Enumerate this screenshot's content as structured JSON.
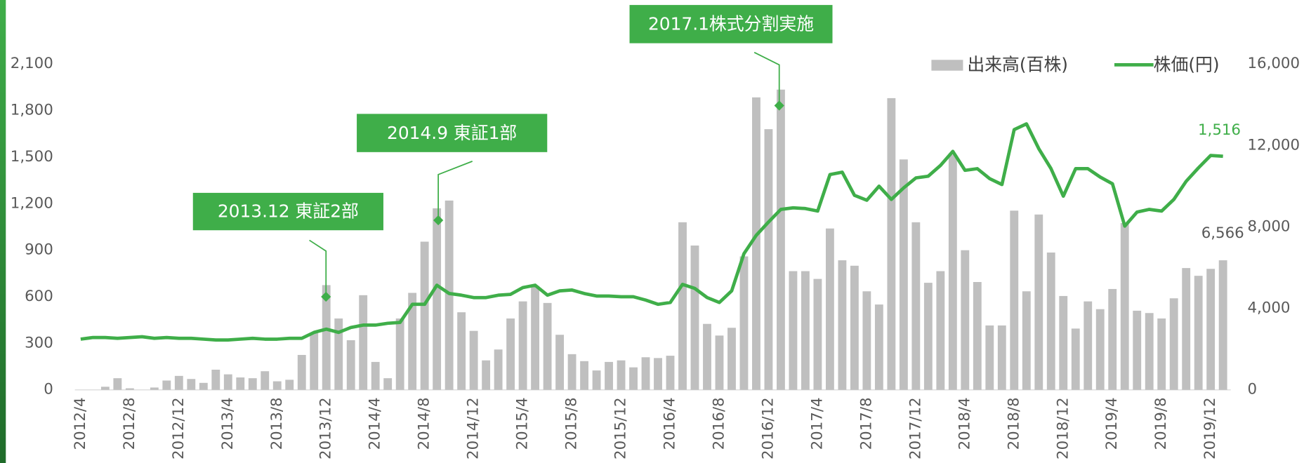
{
  "chart_data": {
    "type": "bar-line",
    "categories": [
      "2012/4",
      null,
      null,
      null,
      "2012/8",
      null,
      null,
      null,
      "2012/12",
      null,
      null,
      null,
      "2013/4",
      null,
      null,
      null,
      "2013/8",
      null,
      null,
      null,
      "2013/12",
      null,
      null,
      null,
      "2014/4",
      null,
      null,
      null,
      "2014/8",
      null,
      null,
      null,
      "2014/12",
      null,
      null,
      null,
      "2015/4",
      null,
      null,
      null,
      "2015/8",
      null,
      null,
      null,
      "2015/12",
      null,
      null,
      null,
      "2016/4",
      null,
      null,
      null,
      "2016/8",
      null,
      null,
      null,
      "2016/12",
      null,
      null,
      null,
      "2017/4",
      null,
      null,
      null,
      "2017/8",
      null,
      null,
      null,
      "2017/12",
      null,
      null,
      null,
      "2018/4",
      null,
      null,
      null,
      "2018/8",
      null,
      null,
      null,
      "2018/12",
      null,
      null,
      null,
      "2019/4",
      null,
      null,
      null,
      "2019/8",
      null,
      null,
      null,
      "2019/12",
      null
    ],
    "series": [
      {
        "name": "出来高(百株)",
        "type": "bar",
        "color": "#bfbfbf",
        "values": [
          0,
          0,
          20,
          75,
          10,
          0,
          15,
          60,
          90,
          70,
          45,
          130,
          100,
          80,
          75,
          120,
          55,
          65,
          225,
          365,
          675,
          460,
          320,
          610,
          180,
          75,
          460,
          625,
          955,
          1170,
          1220,
          500,
          380,
          190,
          260,
          460,
          570,
          670,
          560,
          355,
          230,
          185,
          125,
          180,
          190,
          145,
          210,
          205,
          220,
          1080,
          930,
          425,
          350,
          400,
          860,
          1885,
          1680,
          1935,
          765,
          765,
          715,
          1040,
          835,
          800,
          635,
          550,
          1880,
          1485,
          1080,
          690,
          765,
          1515,
          900,
          695,
          415,
          415,
          1155,
          635,
          1130,
          885,
          605,
          395,
          570,
          520,
          650,
          1075,
          510,
          495,
          460,
          590,
          785,
          735,
          780,
          835
        ]
      },
      {
        "name": "株価(円)",
        "type": "line",
        "axis": "y2",
        "color": "#3fae49",
        "values": [
          2490,
          2570,
          2570,
          2530,
          2570,
          2610,
          2530,
          2570,
          2530,
          2530,
          2490,
          2450,
          2450,
          2490,
          2530,
          2490,
          2490,
          2530,
          2530,
          2820,
          2980,
          2820,
          3060,
          3180,
          3180,
          3270,
          3310,
          4200,
          4200,
          5140,
          4730,
          4650,
          4530,
          4530,
          4650,
          4690,
          5020,
          5140,
          4650,
          4860,
          4900,
          4730,
          4610,
          4610,
          4570,
          4570,
          4410,
          4200,
          4290,
          5180,
          4980,
          4530,
          4290,
          4860,
          6690,
          7590,
          8240,
          8860,
          8940,
          8900,
          8780,
          10570,
          10690,
          9550,
          9310,
          10000,
          9350,
          9920,
          10410,
          10490,
          11020,
          11710,
          10780,
          10860,
          10370,
          10080,
          12780,
          13060,
          11840,
          10860,
          9510,
          10860,
          10860,
          10450,
          10120,
          8040,
          8730,
          8860,
          8780,
          9350,
          10240,
          10900,
          11510,
          11470
        ]
      }
    ],
    "ylim": [
      0,
      2100
    ],
    "yticks": [
      0,
      300,
      600,
      900,
      {
        "value": 1200,
        "label": "1,200"
      },
      {
        "value": 1500,
        "label": "1,500"
      },
      {
        "value": 1800,
        "label": "1,800"
      },
      {
        "value": 2100,
        "label": "2,100"
      }
    ],
    "y2lim": [
      0,
      16000
    ],
    "y2ticks": [
      0,
      {
        "value": 4000,
        "label": "4,000"
      },
      {
        "value": 8000,
        "label": "8,000"
      },
      {
        "value": 12000,
        "label": "12,000"
      },
      {
        "value": 16000,
        "label": "16,000"
      }
    ],
    "annotations": [
      "2013.12 東証2部",
      "2014.9 東証1部",
      "2017.1株式分割実施"
    ],
    "side_labels": [
      "1,516",
      "6,566"
    ],
    "legend": "top-right",
    "grid": false
  }
}
